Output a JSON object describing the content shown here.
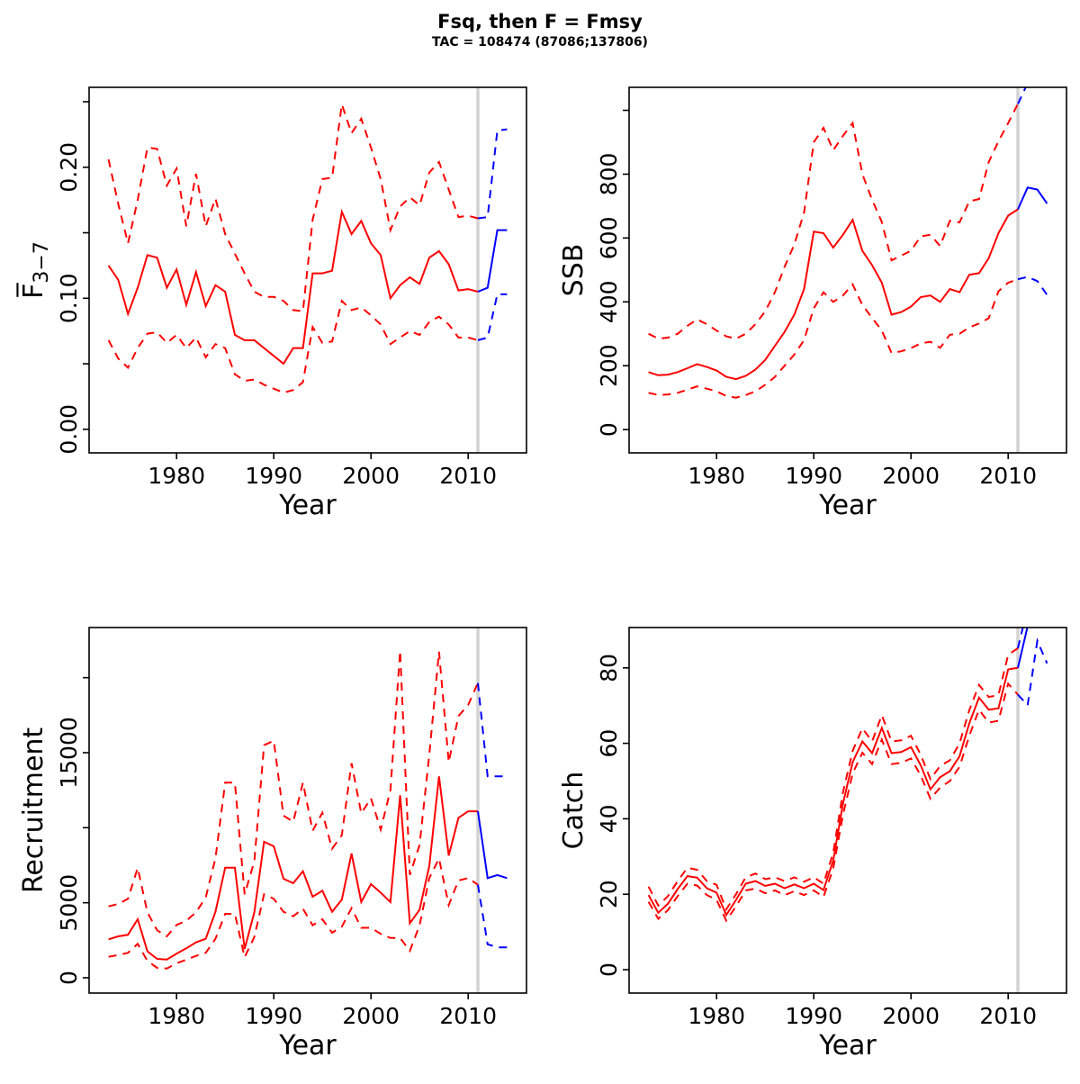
{
  "header": {
    "title": "Fsq, then F = Fmsy",
    "subtitle": "TAC = 108474 (87086;137806)"
  },
  "colors": {
    "history": "#ff0000",
    "forecast": "#0000ff",
    "divider": "#d3d3d3",
    "axis": "#000000"
  },
  "chart_data": {
    "type": "line",
    "layout": "2x2",
    "grid": "off",
    "legend": "none",
    "x": {
      "label": "Year",
      "lim": [
        1971,
        2016
      ],
      "ticks": [
        {
          "v": 1980,
          "label": "1980"
        },
        {
          "v": 1990,
          "label": "1990"
        },
        {
          "v": 2000,
          "label": "2000"
        },
        {
          "v": 2010,
          "label": "2010"
        }
      ],
      "years": [
        1973,
        1974,
        1975,
        1976,
        1977,
        1978,
        1979,
        1980,
        1981,
        1982,
        1983,
        1984,
        1985,
        1986,
        1987,
        1988,
        1989,
        1990,
        1991,
        1992,
        1993,
        1994,
        1995,
        1996,
        1997,
        1998,
        1999,
        2000,
        2001,
        2002,
        2003,
        2004,
        2005,
        2006,
        2007,
        2008,
        2009,
        2010,
        2011,
        2012,
        2013,
        2014
      ]
    },
    "forecast_start_year": 2011,
    "divider_year": 2011,
    "line_styles": {
      "median": "solid",
      "ci90": "dashed"
    },
    "panels": [
      {
        "id": "fbar",
        "ylabel": "F̅",
        "ylabel_sub": "3−7",
        "ylim": [
          -0.018,
          0.261
        ],
        "yticks": [
          {
            "v": 0,
            "label": "0.00"
          },
          {
            "v": 0.05,
            "label": ""
          },
          {
            "v": 0.1,
            "label": "0.10"
          },
          {
            "v": 0.15,
            "label": ""
          },
          {
            "v": 0.2,
            "label": "0.20"
          },
          {
            "v": 0.25,
            "label": ""
          }
        ],
        "series": {
          "median": [
            0.125,
            0.114,
            0.088,
            0.108,
            0.133,
            0.131,
            0.108,
            0.122,
            0.095,
            0.12,
            0.094,
            0.11,
            0.105,
            0.072,
            0.068,
            0.068,
            0.062,
            0.056,
            0.05,
            0.062,
            0.062,
            0.119,
            0.119,
            0.121,
            0.166,
            0.149,
            0.159,
            0.142,
            0.133,
            0.1,
            0.11,
            0.116,
            0.111,
            0.131,
            0.136,
            0.126,
            0.106,
            0.107,
            0.105,
            0.108,
            0.152,
            0.152
          ],
          "lower90": [
            0.068,
            0.054,
            0.047,
            0.062,
            0.073,
            0.074,
            0.066,
            0.072,
            0.062,
            0.07,
            0.055,
            0.065,
            0.062,
            0.042,
            0.037,
            0.038,
            0.034,
            0.031,
            0.028,
            0.03,
            0.036,
            0.078,
            0.066,
            0.067,
            0.098,
            0.091,
            0.093,
            0.087,
            0.08,
            0.065,
            0.07,
            0.075,
            0.072,
            0.082,
            0.086,
            0.08,
            0.07,
            0.07,
            0.068,
            0.07,
            0.103,
            0.103
          ],
          "upper90": [
            0.206,
            0.172,
            0.142,
            0.175,
            0.215,
            0.214,
            0.186,
            0.199,
            0.155,
            0.195,
            0.155,
            0.176,
            0.149,
            0.134,
            0.119,
            0.105,
            0.101,
            0.101,
            0.098,
            0.091,
            0.09,
            0.16,
            0.191,
            0.192,
            0.248,
            0.226,
            0.237,
            0.215,
            0.191,
            0.152,
            0.17,
            0.177,
            0.171,
            0.196,
            0.204,
            0.183,
            0.162,
            0.163,
            0.161,
            0.162,
            0.228,
            0.229
          ]
        }
      },
      {
        "id": "ssb",
        "ylabel": "SSB",
        "ylabel_sub": "",
        "ylim": [
          -73,
          1072
        ],
        "yticks": [
          {
            "v": 0,
            "label": "0"
          },
          {
            "v": 200,
            "label": "200"
          },
          {
            "v": 400,
            "label": "400"
          },
          {
            "v": 600,
            "label": "600"
          },
          {
            "v": 800,
            "label": "800"
          },
          {
            "v": 1000,
            "label": ""
          }
        ],
        "series": {
          "median": [
            180,
            170,
            172,
            180,
            192,
            205,
            196,
            185,
            165,
            158,
            168,
            188,
            218,
            262,
            306,
            360,
            440,
            620,
            615,
            570,
            610,
            657,
            560,
            515,
            460,
            360,
            368,
            385,
            415,
            420,
            400,
            440,
            430,
            485,
            490,
            537,
            615,
            670,
            690,
            758,
            752,
            708
          ],
          "lower90": [
            115,
            108,
            110,
            115,
            125,
            135,
            128,
            120,
            105,
            100,
            108,
            120,
            140,
            165,
            200,
            235,
            280,
            380,
            430,
            400,
            420,
            455,
            390,
            350,
            310,
            240,
            245,
            255,
            270,
            275,
            256,
            297,
            300,
            320,
            332,
            349,
            433,
            460,
            471,
            478,
            465,
            422
          ],
          "upper90": [
            300,
            285,
            288,
            300,
            325,
            345,
            330,
            310,
            292,
            285,
            300,
            330,
            370,
            430,
            510,
            580,
            680,
            900,
            945,
            875,
            920,
            960,
            800,
            720,
            650,
            530,
            545,
            560,
            605,
            610,
            575,
            654,
            649,
            715,
            722,
            838,
            903,
            960,
            1020,
            1085,
            1110,
            1090
          ]
        }
      },
      {
        "id": "recruitment",
        "ylabel": "Recruitment",
        "ylabel_sub": "",
        "ylim": [
          -1020,
          23340
        ],
        "yticks": [
          {
            "v": 0,
            "label": "0"
          },
          {
            "v": 5000,
            "label": "5000"
          },
          {
            "v": 10000,
            "label": ""
          },
          {
            "v": 15000,
            "label": "15000"
          },
          {
            "v": 20000,
            "label": ""
          }
        ],
        "series": {
          "median": [
            2560,
            2760,
            2860,
            3900,
            1760,
            1260,
            1220,
            1600,
            1960,
            2360,
            2600,
            4400,
            7340,
            7340,
            1920,
            4360,
            9060,
            8760,
            6600,
            6300,
            7100,
            5400,
            5800,
            4400,
            5200,
            8280,
            5050,
            6240,
            5670,
            5040,
            12160,
            3630,
            4530,
            7445,
            13425,
            8145,
            10655,
            11095,
            11095,
            6640,
            6845,
            6640
          ],
          "lower90": [
            1400,
            1520,
            1660,
            2260,
            1120,
            660,
            620,
            960,
            1200,
            1460,
            1660,
            2600,
            4260,
            4260,
            1360,
            2720,
            5560,
            5260,
            4400,
            4100,
            4600,
            3500,
            3900,
            3000,
            3400,
            4640,
            3330,
            3330,
            2930,
            2650,
            2650,
            1790,
            3500,
            6640,
            7950,
            4840,
            6480,
            6640,
            6200,
            2230,
            2030,
            2030
          ],
          "upper90": [
            4760,
            4920,
            5260,
            7320,
            4360,
            3160,
            2760,
            3520,
            3800,
            4360,
            5360,
            7960,
            13000,
            13000,
            5560,
            7760,
            15500,
            15800,
            10800,
            10400,
            13000,
            9800,
            11000,
            8600,
            9500,
            14300,
            10955,
            11960,
            9870,
            12500,
            21790,
            6860,
            8850,
            14870,
            21730,
            14370,
            17440,
            18180,
            19645,
            13425,
            13425,
            13425
          ]
        }
      },
      {
        "id": "catch",
        "ylabel": "Catch",
        "ylabel_sub": "",
        "ylim": [
          -6.2,
          90.7
        ],
        "yticks": [
          {
            "v": 0,
            "label": "0"
          },
          {
            "v": 20,
            "label": "20"
          },
          {
            "v": 40,
            "label": "40"
          },
          {
            "v": 60,
            "label": "60"
          },
          {
            "v": 80,
            "label": "80"
          }
        ],
        "series": {
          "median": [
            19.8,
            15.1,
            17.5,
            21.4,
            24.8,
            24.4,
            21.6,
            20.4,
            14.5,
            18.5,
            22.8,
            23.5,
            22.2,
            22.8,
            21.6,
            22.6,
            21.6,
            22.8,
            21.1,
            28.9,
            44,
            55,
            60.5,
            57.4,
            64.1,
            57.4,
            57.7,
            59,
            54.2,
            47.8,
            51,
            52.6,
            56.6,
            65.3,
            72.1,
            68.9,
            69.3,
            79.6,
            80,
            91,
            96,
            94
          ],
          "lower90": [
            18,
            13.5,
            15.8,
            19.5,
            22.8,
            22.3,
            19.8,
            18.5,
            13,
            16.8,
            21,
            21.5,
            20.3,
            21,
            19.8,
            20.8,
            19.8,
            21,
            19.3,
            26.8,
            41,
            52,
            57.5,
            54.5,
            61,
            54.5,
            54.8,
            56,
            51.5,
            45.3,
            48.3,
            50,
            53.8,
            62,
            68.9,
            65.5,
            66,
            75.8,
            72.9,
            70.1,
            87.2,
            81.2
          ],
          "upper90": [
            22,
            17,
            19.5,
            23.5,
            27,
            26.5,
            23.5,
            22.5,
            16,
            20,
            24.5,
            25.5,
            24,
            24.5,
            23.5,
            24.5,
            23.3,
            24.5,
            22.8,
            31,
            47,
            58,
            64,
            60.5,
            67.5,
            60.5,
            60.8,
            62,
            57,
            50.5,
            54,
            55.5,
            60,
            68.8,
            75.5,
            72.3,
            72.8,
            83.5,
            85.2,
            96,
            101,
            99
          ]
        }
      }
    ]
  }
}
